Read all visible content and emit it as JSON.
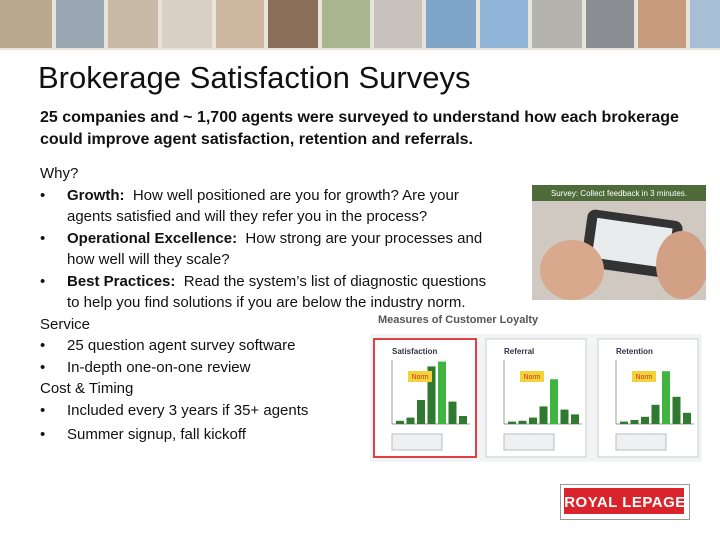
{
  "header": {
    "title": "Brokerage Satisfaction Surveys",
    "subtitle": "25 companies and ~ 1,700 agents were surveyed to understand how each brokerage could improve agent satisfaction, retention and referrals."
  },
  "sections": [
    {
      "heading": "Why?",
      "items": [
        {
          "label": "Growth:",
          "text": "How well positioned are you for growth?  Are your agents satisfied and will they refer you in the process?"
        },
        {
          "label": "Operational Excellence:",
          "text": "How strong are your processes and how well will they scale?"
        },
        {
          "label": "Best Practices:",
          "text": "Read the system’s list of diagnostic questions to help you find solutions if you are below the industry norm."
        }
      ]
    },
    {
      "heading": "Service",
      "items": [
        {
          "text": "25 question agent survey software"
        },
        {
          "text": "In-depth one-on-one review"
        }
      ]
    },
    {
      "heading": "Cost & Timing",
      "items": [
        {
          "text": "Included every 3 years if  35+ agents"
        },
        {
          "text": "Summer signup, fall kickoff"
        }
      ]
    }
  ],
  "images": {
    "survey_caption": "Survey: Collect feedback in 3 minutes.",
    "loyalty_title": "Measures of Customer Loyalty",
    "panels": [
      "Satisfaction",
      "Referral",
      "Retention"
    ],
    "norm_label": "Norm"
  },
  "logo": {
    "text": "ROYAL LEPAGE"
  }
}
